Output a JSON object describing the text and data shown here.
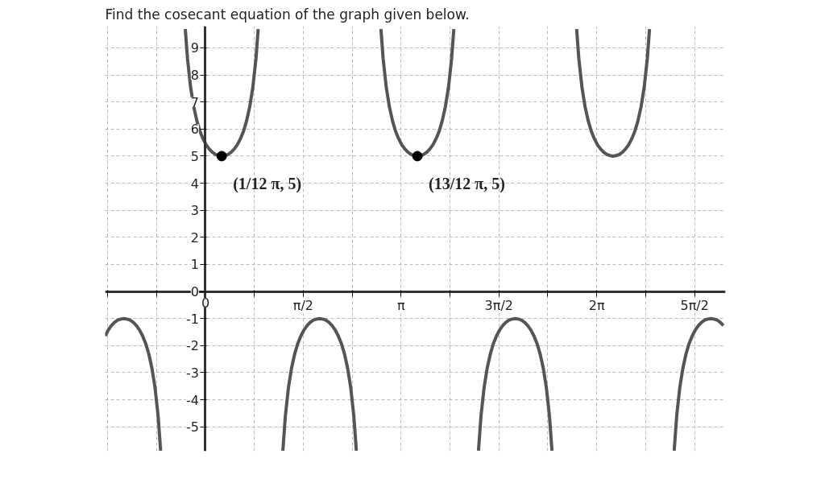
{
  "chart_data": {
    "type": "line",
    "title": "Find the cosecant equation of the graph given below.",
    "xlim": [
      -1.61,
      8.35
    ],
    "ylim": [
      -5.9,
      9.8
    ],
    "xticks": [
      {
        "value": -1.5708,
        "label": null
      },
      {
        "value": -0.7854,
        "label": null
      },
      {
        "value": 0,
        "label": "0"
      },
      {
        "value": 0.7854,
        "label": null
      },
      {
        "value": 1.5708,
        "label": "π/2"
      },
      {
        "value": 2.3562,
        "label": null
      },
      {
        "value": 3.1416,
        "label": "π"
      },
      {
        "value": 3.927,
        "label": null
      },
      {
        "value": 4.7124,
        "label": "3π/2"
      },
      {
        "value": 5.4978,
        "label": null
      },
      {
        "value": 6.2832,
        "label": "2π"
      },
      {
        "value": 7.0686,
        "label": null
      },
      {
        "value": 7.854,
        "label": "5π/2"
      }
    ],
    "yticks": [
      -5,
      -4,
      -3,
      -2,
      -1,
      0,
      1,
      2,
      3,
      4,
      5,
      6,
      7,
      8,
      9
    ],
    "grid": true,
    "series": [
      {
        "color": "#555555",
        "x": [
          -0.323,
          -0.288,
          -0.238,
          -0.188,
          -0.138,
          -0.088,
          -0.038,
          0.012,
          0.062,
          0.112,
          0.162,
          0.212,
          0.262,
          0.312,
          0.362,
          0.412,
          0.462,
          0.512,
          0.562,
          0.612,
          0.662,
          0.712,
          0.762,
          0.812,
          0.847
        ],
        "values": [
          9.69,
          8.61,
          7.55,
          6.83,
          6.31,
          5.92,
          5.64,
          5.42,
          5.26,
          5.14,
          5.06,
          5.02,
          5,
          5.02,
          5.06,
          5.14,
          5.26,
          5.42,
          5.64,
          5.92,
          6.31,
          6.83,
          7.55,
          8.61,
          9.69
        ]
      },
      {
        "color": "#555555",
        "x": [
          2.818,
          2.853,
          2.903,
          2.953,
          3.003,
          3.053,
          3.103,
          3.153,
          3.203,
          3.253,
          3.303,
          3.353,
          3.403,
          3.453,
          3.503,
          3.553,
          3.603,
          3.653,
          3.703,
          3.753,
          3.803,
          3.853,
          3.903,
          3.953,
          3.988
        ],
        "values": [
          9.69,
          8.61,
          7.55,
          6.83,
          6.31,
          5.92,
          5.64,
          5.42,
          5.26,
          5.14,
          5.06,
          5.02,
          5,
          5.02,
          5.06,
          5.14,
          5.26,
          5.42,
          5.64,
          5.92,
          6.31,
          6.83,
          7.55,
          8.61,
          9.69
        ]
      },
      {
        "color": "#555555",
        "x": [
          5.96,
          5.995,
          6.045,
          6.095,
          6.145,
          6.195,
          6.245,
          6.295,
          6.345,
          6.395,
          6.445,
          6.495,
          6.545,
          6.595,
          6.645,
          6.695,
          6.745,
          6.795,
          6.845,
          6.895,
          6.945,
          6.995,
          7.045,
          7.095,
          7.13
        ],
        "values": [
          9.69,
          8.61,
          7.55,
          6.83,
          6.31,
          5.92,
          5.64,
          5.42,
          5.26,
          5.14,
          5.06,
          5.02,
          5,
          5.02,
          5.06,
          5.14,
          5.26,
          5.42,
          5.64,
          5.92,
          6.31,
          6.83,
          7.55,
          8.61,
          9.69
        ]
      },
      {
        "color": "#555555",
        "x": [
          -1.609,
          -1.559,
          -1.509,
          -1.459,
          -1.409,
          -1.359,
          -1.309,
          -1.259,
          -1.209,
          -1.159,
          -1.109,
          -1.059,
          -1.009,
          -0.959,
          -0.909,
          -0.859,
          -0.809,
          -0.759,
          -0.719
        ],
        "values": [
          -1.64,
          -1.42,
          -1.26,
          -1.14,
          -1.06,
          -1.02,
          -1,
          -1.02,
          -1.06,
          -1.14,
          -1.26,
          -1.42,
          -1.64,
          -1.92,
          -2.31,
          -2.83,
          -3.55,
          -4.61,
          -5.88
        ]
      },
      {
        "color": "#555555",
        "x": [
          1.243,
          1.283,
          1.333,
          1.383,
          1.433,
          1.483,
          1.533,
          1.583,
          1.633,
          1.683,
          1.733,
          1.783,
          1.833,
          1.883,
          1.933,
          1.983,
          2.033,
          2.083,
          2.133,
          2.183,
          2.233,
          2.283,
          2.333,
          2.383,
          2.423
        ],
        "values": [
          -5.88,
          -4.61,
          -3.55,
          -2.83,
          -2.31,
          -1.92,
          -1.64,
          -1.42,
          -1.26,
          -1.14,
          -1.06,
          -1.02,
          -1,
          -1.02,
          -1.06,
          -1.14,
          -1.26,
          -1.42,
          -1.64,
          -1.92,
          -2.31,
          -2.83,
          -3.55,
          -4.61,
          -5.88
        ]
      },
      {
        "color": "#555555",
        "x": [
          4.384,
          4.424,
          4.474,
          4.524,
          4.574,
          4.624,
          4.674,
          4.724,
          4.774,
          4.824,
          4.874,
          4.924,
          4.974,
          5.024,
          5.074,
          5.124,
          5.174,
          5.224,
          5.274,
          5.324,
          5.374,
          5.424,
          5.474,
          5.524,
          5.564
        ],
        "values": [
          -5.88,
          -4.61,
          -3.55,
          -2.83,
          -2.31,
          -1.92,
          -1.64,
          -1.42,
          -1.26,
          -1.14,
          -1.06,
          -1.02,
          -1,
          -1.02,
          -1.06,
          -1.14,
          -1.26,
          -1.42,
          -1.64,
          -1.92,
          -2.31,
          -2.83,
          -3.55,
          -4.61,
          -5.88
        ]
      },
      {
        "color": "#555555",
        "x": [
          7.526,
          7.566,
          7.616,
          7.666,
          7.716,
          7.766,
          7.816,
          7.866,
          7.916,
          7.966,
          8.016,
          8.066,
          8.116,
          8.166,
          8.216,
          8.266,
          8.316
        ],
        "values": [
          -5.88,
          -4.61,
          -3.55,
          -2.83,
          -2.31,
          -1.92,
          -1.64,
          -1.42,
          -1.26,
          -1.14,
          -1.06,
          -1.02,
          -1,
          -1.02,
          -1.06,
          -1.14,
          -1.26
        ]
      },
      {
        "type": "scatter",
        "marker": "circle",
        "color": "#000000",
        "x": [
          0.2618,
          3.4034
        ],
        "values": [
          5,
          5
        ]
      }
    ],
    "annotations": [
      {
        "text": "(1/12 π, 5)",
        "x": 0.2618,
        "y": 5
      },
      {
        "text": "(13/12 π, 5)",
        "x": 3.4034,
        "y": 5
      }
    ]
  }
}
